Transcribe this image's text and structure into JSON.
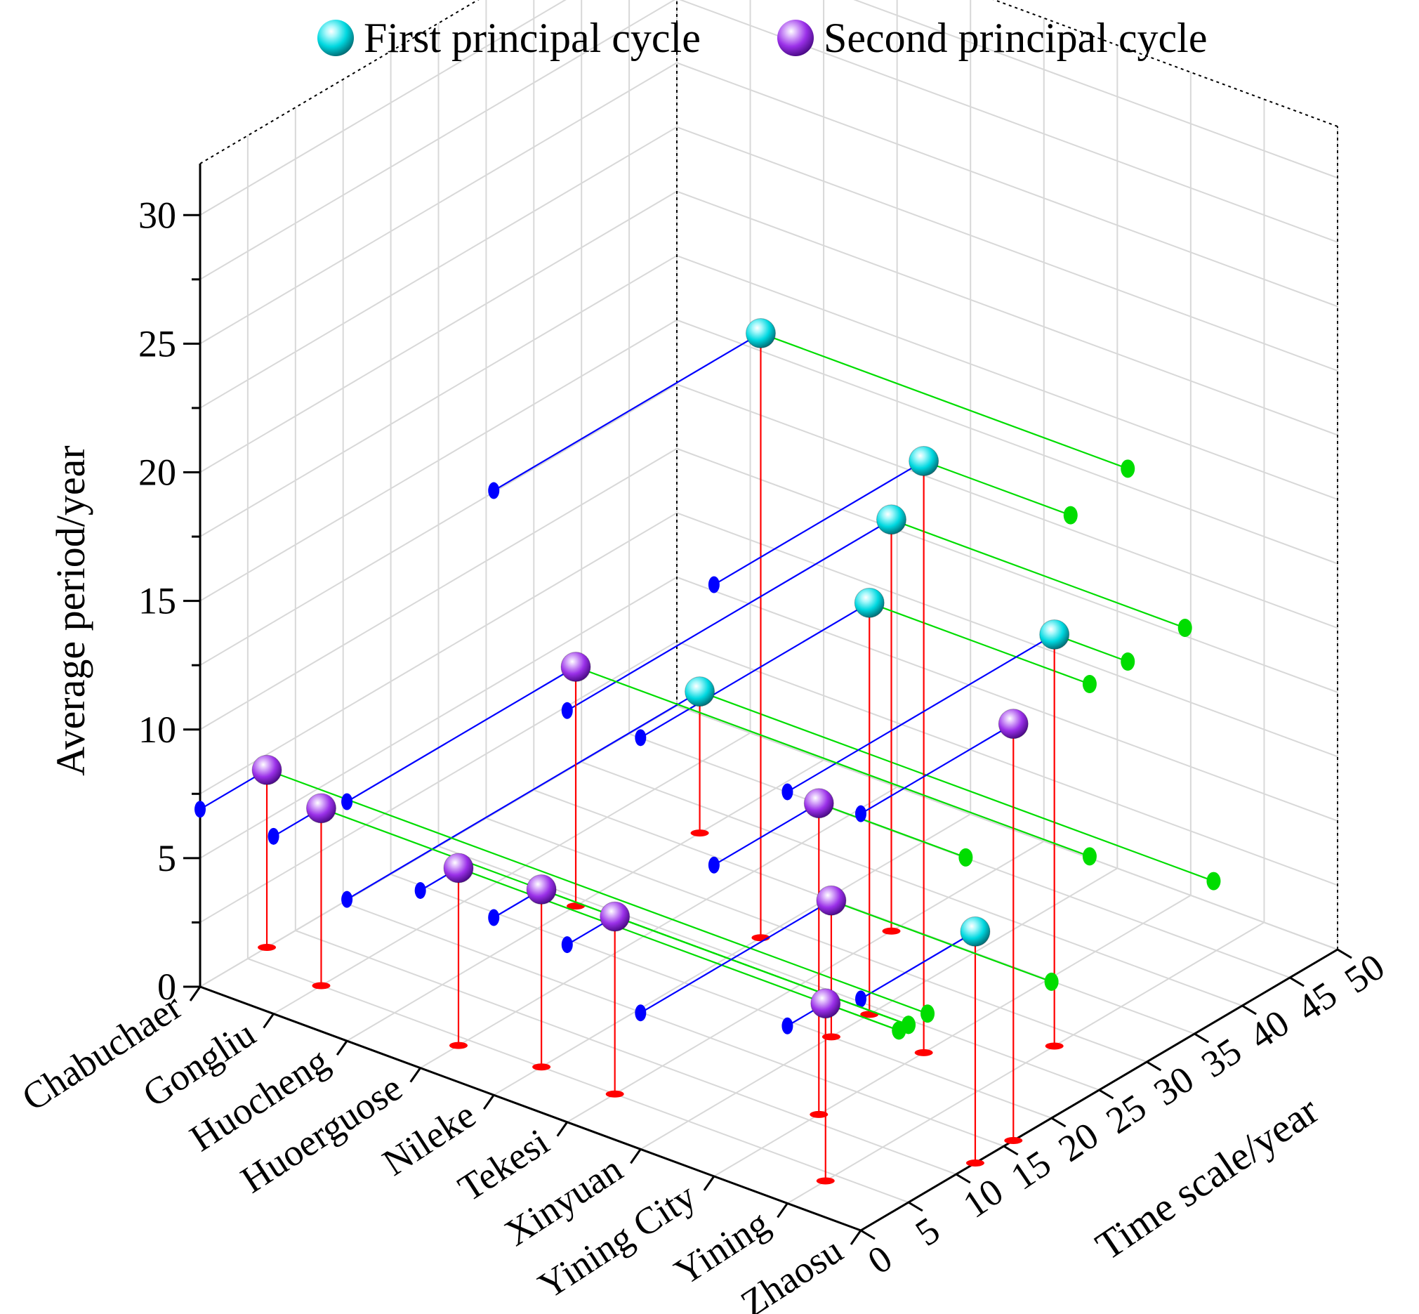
{
  "chart_data": {
    "type": "scatter3d",
    "legend": {
      "position": "top",
      "entries": [
        {
          "name": "First principal cycle",
          "color": "#00d8e0"
        },
        {
          "name": "Second principal cycle",
          "color": "#9a30e8"
        }
      ]
    },
    "axes": {
      "x": {
        "label": "",
        "categories": [
          "Chabuchaer",
          "Gongliu",
          "Huocheng",
          "Huoerguose",
          "Nileke",
          "Tekesi",
          "Xinyuan",
          "Yining City",
          "Yining",
          "Zhaosu"
        ]
      },
      "y": {
        "label": "Time scale/year",
        "range": [
          0,
          50
        ],
        "ticks": [
          "0",
          "5",
          "10",
          "15",
          "20",
          "25",
          "30",
          "35",
          "40",
          "45",
          "50"
        ]
      },
      "z": {
        "label": "Average period/year",
        "range": [
          0,
          32
        ],
        "ticks": [
          "0",
          "5",
          "10",
          "15",
          "20",
          "25",
          "30"
        ]
      }
    },
    "grid": true,
    "projection_colors": {
      "time_wall": "#0000ff",
      "county_wall": "#00dd00",
      "floor": "#ff0000"
    },
    "series": [
      {
        "name": "First principal cycle",
        "points": [
          {
            "county": "Huocheng",
            "time": 37,
            "period": 5.5
          },
          {
            "county": "Nileke",
            "time": 28,
            "period": 23.5
          },
          {
            "county": "Tekesi",
            "time": 34,
            "period": 16.0
          },
          {
            "county": "Xinyuan",
            "time": 24,
            "period": 16.0
          },
          {
            "county": "Yining City",
            "time": 22,
            "period": 23.0
          },
          {
            "county": "Yining",
            "time": 28,
            "period": 16.0
          },
          {
            "county": "Zhaosu",
            "time": 12,
            "period": 9.0
          }
        ]
      },
      {
        "name": "Second principal cycle",
        "points": [
          {
            "county": "Chabuchaer",
            "time": 7,
            "period": 6.9
          },
          {
            "county": "Gongliu",
            "time": 5,
            "period": 6.9
          },
          {
            "county": "Huocheng",
            "time": 24,
            "period": 9.3
          },
          {
            "county": "Huoerguose",
            "time": 4,
            "period": 6.9
          },
          {
            "county": "Nileke",
            "time": 5,
            "period": 6.9
          },
          {
            "county": "Tekesi",
            "time": 5,
            "period": 6.9
          },
          {
            "county": "Xinyuan",
            "time": 20,
            "period": 5.3
          },
          {
            "county": "Yining City",
            "time": 11,
            "period": 12.1
          },
          {
            "county": "Yining",
            "time": 4,
            "period": 6.9
          },
          {
            "county": "Zhaosu",
            "time": 16,
            "period": 16.2
          }
        ]
      }
    ]
  }
}
